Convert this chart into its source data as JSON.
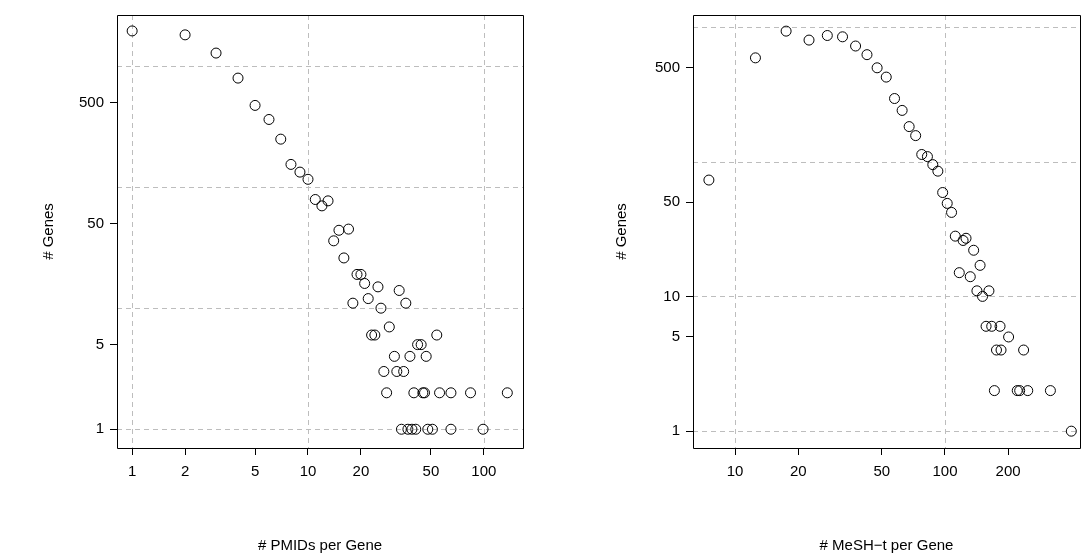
{
  "chart_data": [
    {
      "type": "scatter",
      "xlabel": "# PMIDs per Gene",
      "ylabel": "# Genes",
      "log": "xy",
      "grid": true,
      "marker": "circle",
      "xlim": [
        0.82,
        167
      ],
      "ylim": [
        0.74,
        2640
      ],
      "xticks": [
        1,
        2,
        5,
        10,
        20,
        50,
        100
      ],
      "yticks": [
        1,
        5,
        50,
        500
      ],
      "series": [
        {
          "color": "#000000",
          "x": [
            1,
            2,
            3,
            4,
            5,
            6,
            7,
            8,
            9,
            10,
            11,
            12,
            13,
            15,
            17,
            14,
            16,
            19,
            20,
            21,
            25,
            33,
            18,
            22,
            26,
            36,
            29,
            23,
            24,
            54,
            42,
            44,
            31,
            38,
            47,
            27,
            32,
            35,
            28,
            40,
            45,
            46,
            56,
            65,
            84,
            136,
            34,
            37,
            39,
            41,
            48,
            51,
            65,
            99
          ],
          "values": [
            1950,
            1810,
            1280,
            795,
            473,
            362,
            249,
            154,
            133,
            116,
            79,
            70,
            77,
            44,
            45,
            36,
            26,
            19,
            19,
            16,
            15,
            14,
            11,
            12,
            10,
            11,
            7,
            6,
            6,
            6,
            5,
            5,
            4,
            4,
            4,
            3,
            3,
            3,
            2,
            2,
            2,
            2,
            2,
            2,
            2,
            2,
            1,
            1,
            1,
            1,
            1,
            1,
            1,
            1
          ]
        }
      ]
    },
    {
      "type": "scatter",
      "xlabel": "# MeSH−t per Gene",
      "ylabel": "# Genes",
      "log": "xy",
      "grid": true,
      "marker": "circle",
      "xlim": [
        6.3,
        440
      ],
      "ylim": [
        0.75,
        1225
      ],
      "xticks": [
        10,
        20,
        50,
        100,
        200
      ],
      "yticks": [
        1,
        5,
        10,
        50,
        500
      ],
      "series": [
        {
          "color": "#000000",
          "x": [
            7.5,
            12.5,
            17.5,
            22.5,
            27.5,
            32.5,
            37.5,
            42.5,
            47.5,
            52.5,
            57.5,
            62.5,
            67.5,
            72.5,
            77.5,
            82.5,
            87.5,
            92.5,
            97.5,
            102.5,
            107.5,
            112,
            117,
            122,
            126,
            132,
            137,
            147,
            142,
            162,
            151,
            157,
            167,
            183,
            201,
            176,
            185,
            237,
            172,
            221,
            227,
            248,
            318,
            400
          ],
          "values": [
            73,
            589,
            930,
            798,
            863,
            844,
            721,
            622,
            497,
            424,
            294,
            240,
            182,
            156,
            113,
            109,
            95,
            85,
            59,
            49,
            42,
            28,
            15,
            26,
            27,
            14,
            22,
            17,
            11,
            11,
            10,
            6,
            6,
            6,
            5,
            4,
            4,
            4,
            2,
            2,
            2,
            2,
            2,
            1
          ]
        }
      ]
    }
  ]
}
